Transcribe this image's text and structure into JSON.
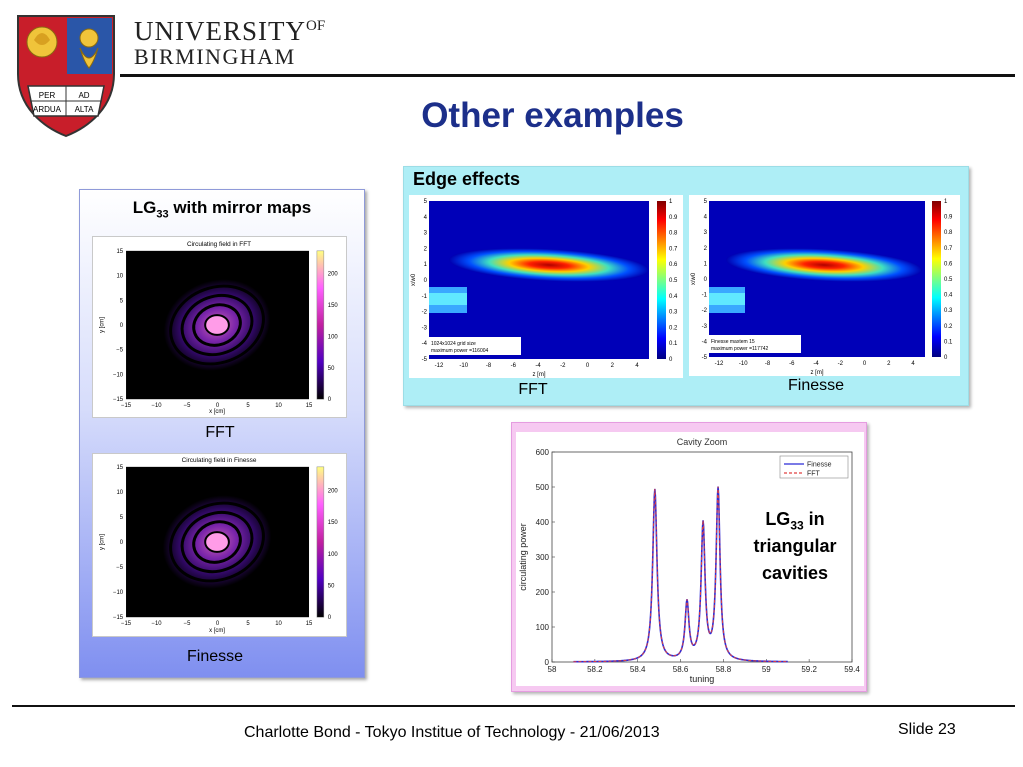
{
  "header": {
    "university_line1": "UNIVERSITY",
    "university_of": "OF",
    "university_line2": "BIRMINGHAM",
    "crest_motto": [
      "PER",
      "AD",
      "ARDUA",
      "ALTA"
    ]
  },
  "slide": {
    "title": "Other examples",
    "footer": "Charlotte Bond - Tokyo Institue of Technology - 21/06/2013",
    "slide_number": "Slide 23"
  },
  "left_panel": {
    "heading_main": "LG",
    "heading_sub": "33",
    "heading_rest": " with mirror maps",
    "plot1": {
      "title": "Circulating field in FFT",
      "xlabel": "x [cm]",
      "ylabel": "y [cm]",
      "yticks": [
        "15",
        "10",
        "5",
        "0",
        "−5",
        "−10",
        "−15"
      ],
      "xticks": [
        "−15",
        "−10",
        "−5",
        "0",
        "5",
        "10",
        "15"
      ],
      "cbar_ticks": [
        "200",
        "150",
        "100",
        "50",
        "0"
      ],
      "caption": "FFT"
    },
    "plot2": {
      "title": "Circulating field in Finesse",
      "xlabel": "x [cm]",
      "ylabel": "y [cm]",
      "yticks": [
        "15",
        "10",
        "5",
        "0",
        "−5",
        "−10",
        "−15"
      ],
      "xticks": [
        "−15",
        "−10",
        "−5",
        "0",
        "5",
        "10",
        "15"
      ],
      "cbar_ticks": [
        "200",
        "150",
        "100",
        "50",
        "0"
      ],
      "caption": "Finesse"
    }
  },
  "edge_panel": {
    "heading": "Edge effects",
    "plot_fft": {
      "ylabel": "x/w0",
      "xlabel": "z [m]",
      "yticks": [
        "5",
        "4",
        "3",
        "2",
        "1",
        "0",
        "-1",
        "-2",
        "-3",
        "-4",
        "-5"
      ],
      "xticks": [
        "-12",
        "-10",
        "-8",
        "-6",
        "-4",
        "-2",
        "0",
        "2",
        "4"
      ],
      "cbar_ticks": [
        "1",
        "0.9",
        "0.8",
        "0.7",
        "0.6",
        "0.5",
        "0.4",
        "0.3",
        "0.2",
        "0.1",
        "0"
      ],
      "note_line1": "1024x1024 grid size",
      "note_line2": "maximum power =116004",
      "caption": "FFT"
    },
    "plot_finesse": {
      "ylabel": "x/w0",
      "xlabel": "z [m]",
      "yticks": [
        "5",
        "4",
        "3",
        "2",
        "1",
        "0",
        "-1",
        "-2",
        "-3",
        "-4",
        "-5"
      ],
      "xticks": [
        "-12",
        "-10",
        "-8",
        "-6",
        "-4",
        "-2",
        "0",
        "2",
        "4"
      ],
      "cbar_ticks": [
        "1",
        "0.9",
        "0.8",
        "0.7",
        "0.6",
        "0.5",
        "0.4",
        "0.3",
        "0.2",
        "0.1",
        "0"
      ],
      "note_line1": "Finesse maxtem 15",
      "note_line2": "maximum power =117742",
      "caption": "Finesse"
    }
  },
  "tri_panel": {
    "label_main": "LG",
    "label_sub": "33",
    "label_rest": " in",
    "label_line2": "triangular",
    "label_line3": "cavities"
  },
  "chart_data": {
    "type": "line",
    "title": "Cavity Zoom",
    "xlabel": "tuning",
    "ylabel": "circulating power",
    "xlim": [
      58,
      59.4
    ],
    "ylim": [
      0,
      600
    ],
    "xticks": [
      "58",
      "58.2",
      "58.4",
      "58.6",
      "58.8",
      "59",
      "59.2",
      "59.4"
    ],
    "yticks": [
      "0",
      "100",
      "200",
      "300",
      "400",
      "500",
      "600"
    ],
    "legend_position": "top-right",
    "grid": false,
    "series": [
      {
        "name": "Finesse",
        "color": "#2a2ad8",
        "style": "solid",
        "peaks": [
          {
            "x": 58.48,
            "height": 492,
            "width": 0.012
          },
          {
            "x": 58.63,
            "height": 165,
            "width": 0.011
          },
          {
            "x": 58.705,
            "height": 388,
            "width": 0.011
          },
          {
            "x": 58.775,
            "height": 490,
            "width": 0.011
          }
        ],
        "x_start": 58.1,
        "x_end": 59.1
      },
      {
        "name": "FFT",
        "color": "#e04040",
        "style": "dashed",
        "peaks": [
          {
            "x": 58.48,
            "height": 492,
            "width": 0.012
          },
          {
            "x": 58.63,
            "height": 165,
            "width": 0.011
          },
          {
            "x": 58.705,
            "height": 388,
            "width": 0.011
          },
          {
            "x": 58.775,
            "height": 490,
            "width": 0.011
          }
        ],
        "x_start": 58.1,
        "x_end": 59.1
      }
    ]
  }
}
